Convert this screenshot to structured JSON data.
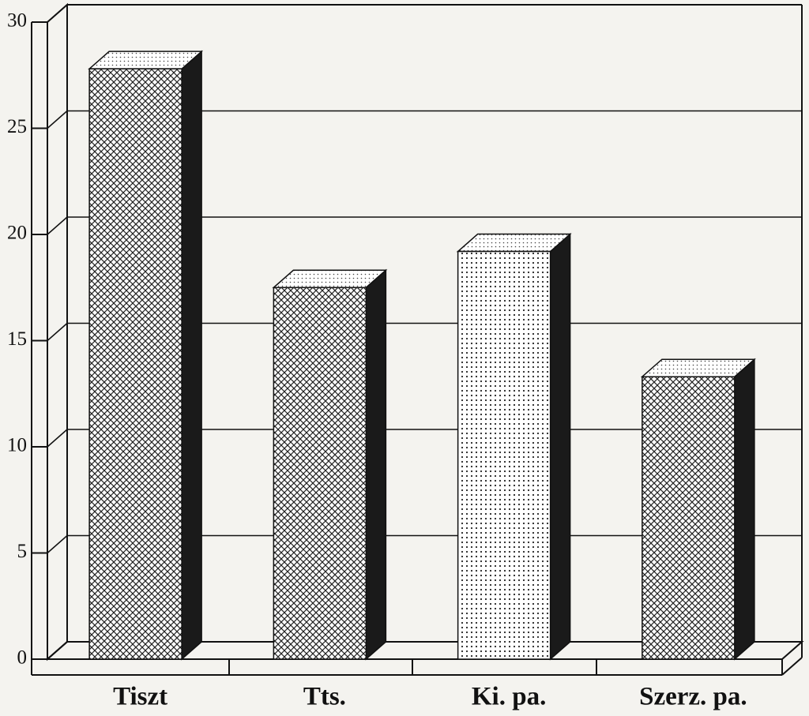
{
  "chart_data": {
    "type": "bar3d",
    "categories": [
      "Tiszt",
      "Tts.",
      "Ki. pa.",
      "Szerz. pa."
    ],
    "values": [
      27.8,
      17.5,
      19.2,
      13.3
    ],
    "ylim": [
      0,
      30
    ],
    "yticks": [
      0,
      5,
      10,
      15,
      20,
      25,
      30
    ],
    "grid": true,
    "patterns": [
      "cross",
      "cross",
      "dots",
      "cross"
    ],
    "side_color": "#1a1a1a"
  }
}
